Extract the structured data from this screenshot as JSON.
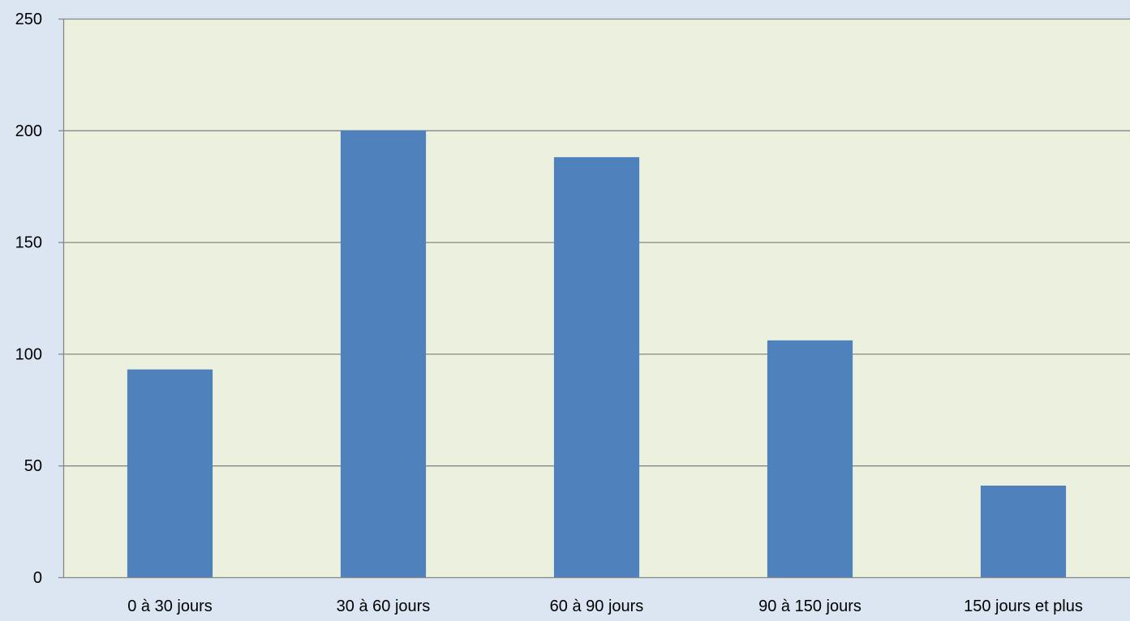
{
  "chart_data": {
    "type": "bar",
    "title": "",
    "xlabel": "",
    "ylabel": "",
    "categories": [
      "0 à 30 jours",
      "30 à 60 jours",
      "60 à 90 jours",
      "90 à 150 jours",
      "150 jours et plus"
    ],
    "values": [
      93,
      200,
      188,
      106,
      41
    ],
    "ylim": [
      0,
      250
    ],
    "yticks": [
      0,
      50,
      100,
      150,
      200,
      250
    ],
    "grid": true,
    "legend": "none"
  },
  "colors": {
    "page_background": "#dce6f2",
    "plot_background": "#ebf1de",
    "bar": "#4f81bd",
    "gridline": "#868686",
    "axis": "#868686"
  }
}
